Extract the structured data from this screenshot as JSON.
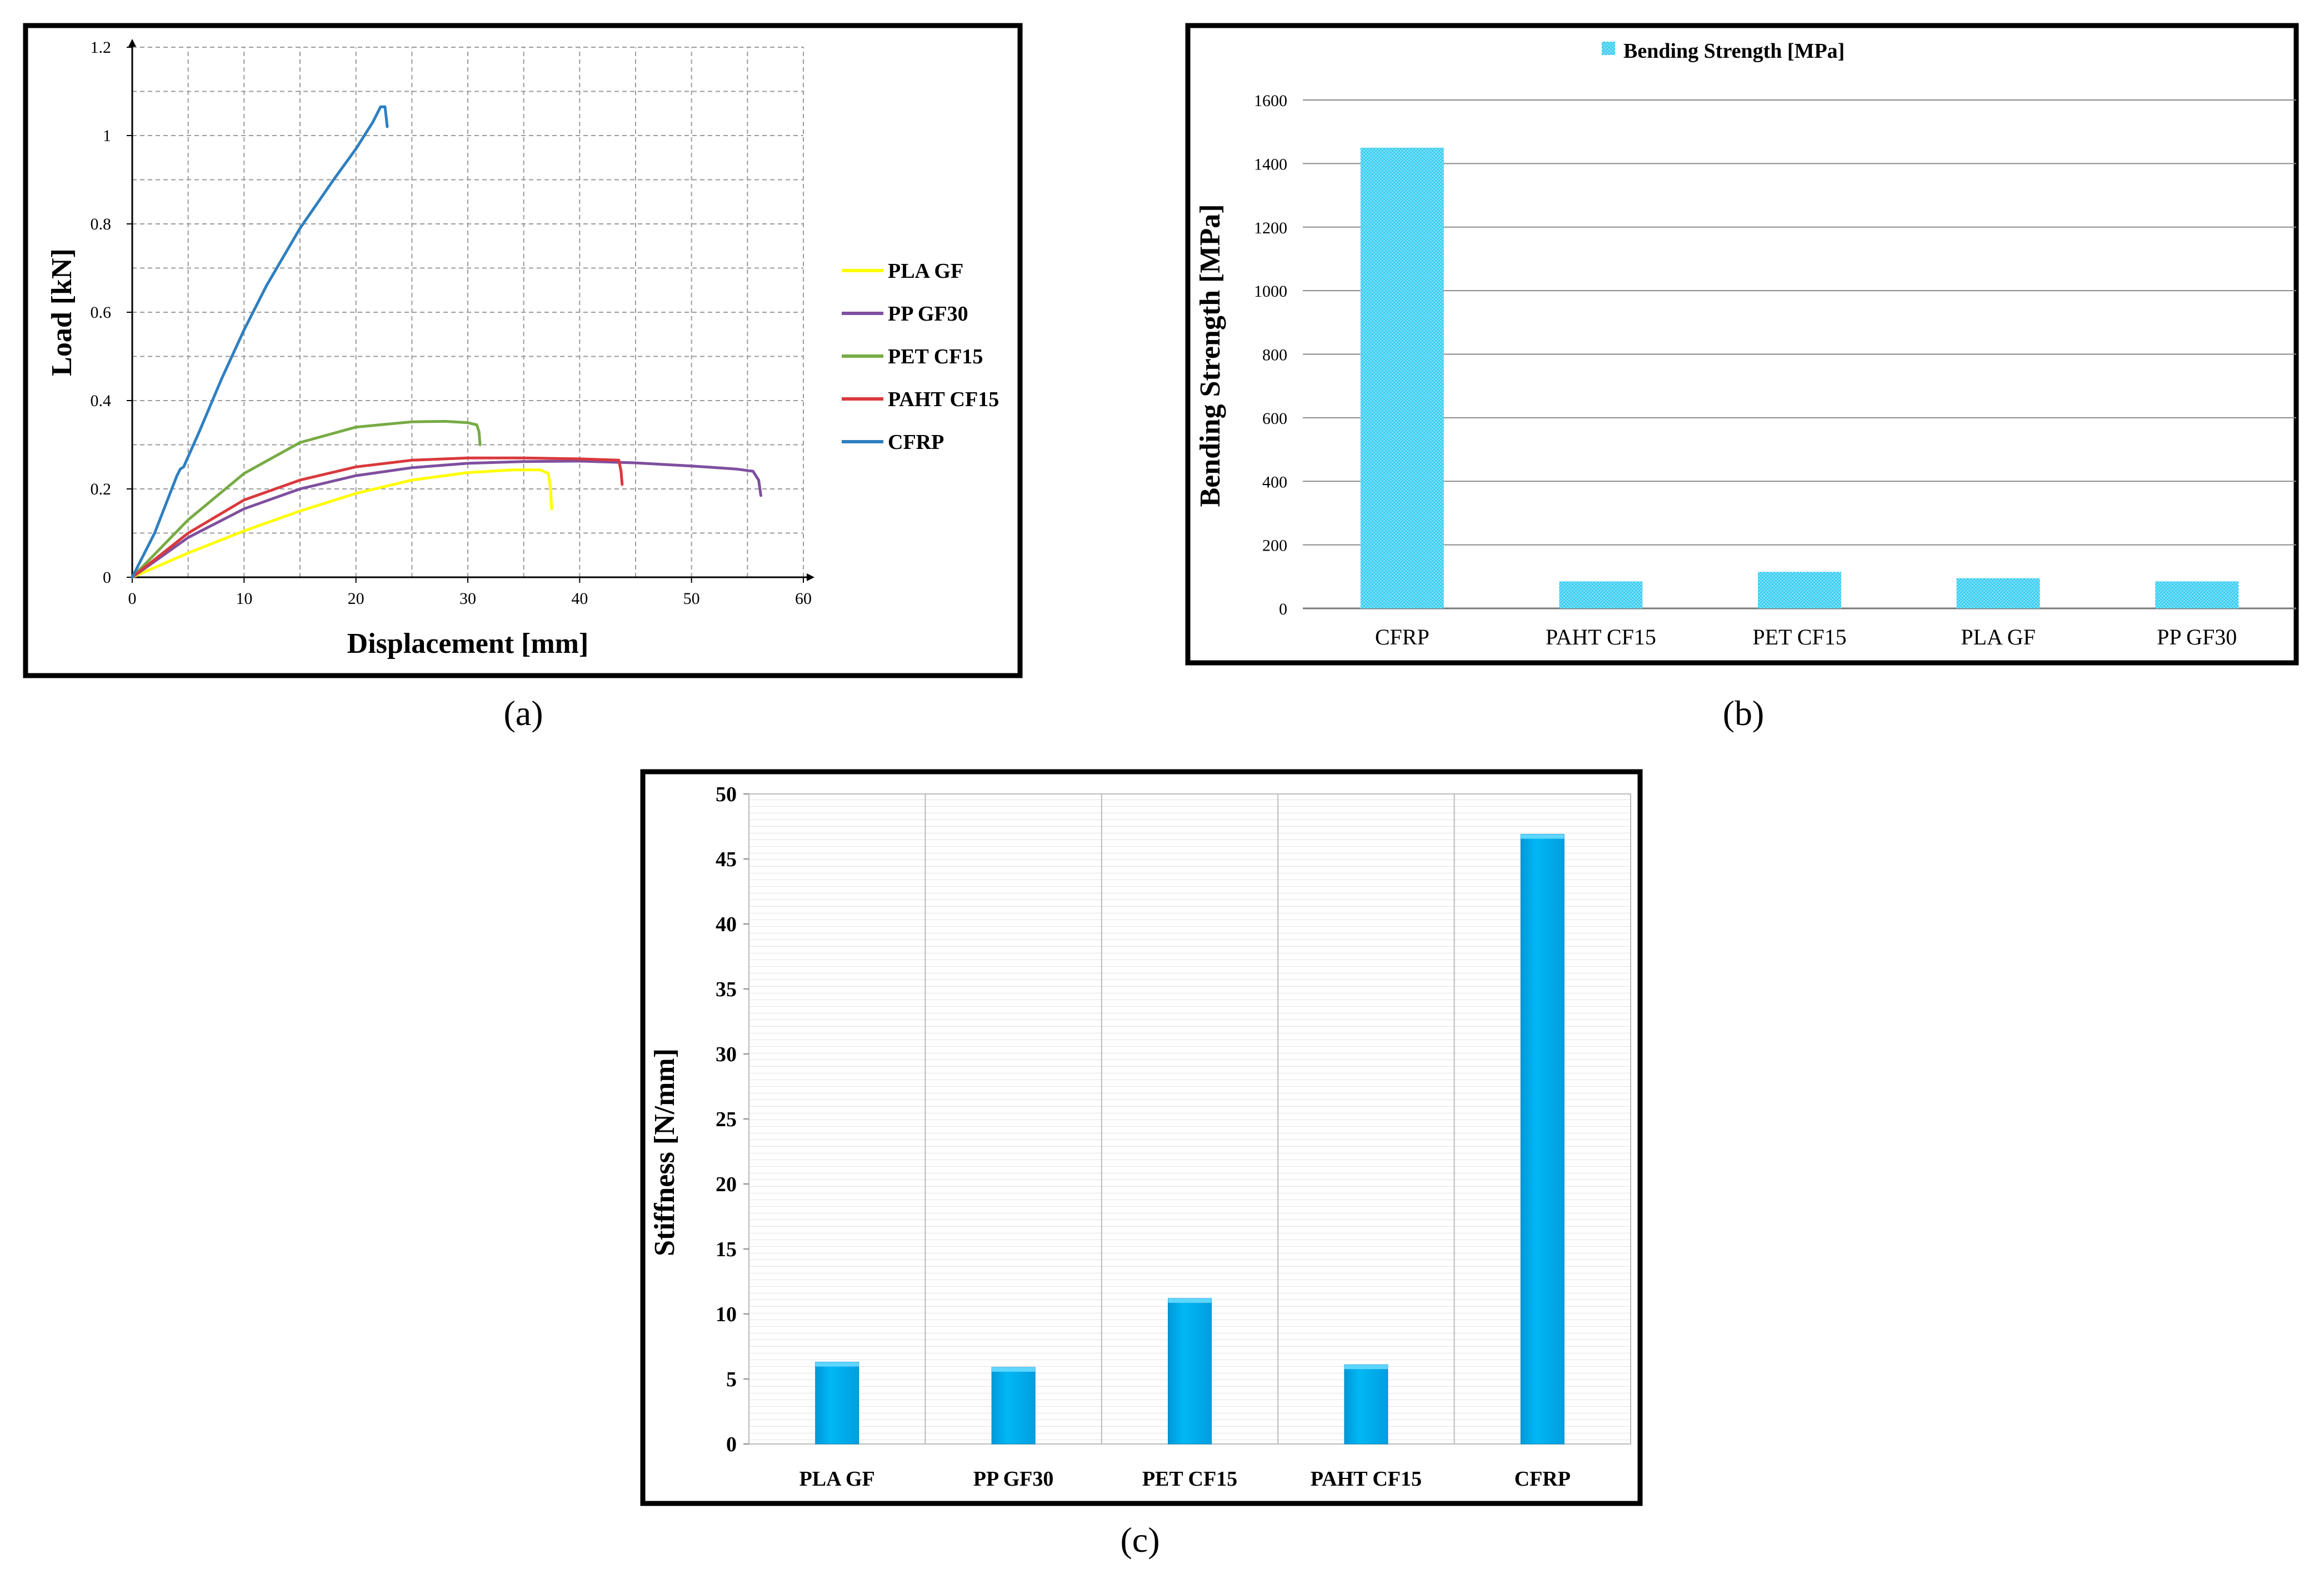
{
  "panel_labels": {
    "a": "(a)",
    "b": "(b)",
    "c": "(c)"
  },
  "chart_data": [
    {
      "type": "line",
      "panel": "a",
      "title": "",
      "xlabel": "Displacement [mm]",
      "ylabel": "Load [kN]",
      "xlim": [
        0,
        60
      ],
      "ylim": [
        0,
        1.2
      ],
      "xticks": [
        0,
        10,
        20,
        30,
        40,
        50,
        60
      ],
      "yticks": [
        0,
        0.2,
        0.4,
        0.6,
        0.8,
        1,
        1.2
      ],
      "xtick_labels": [
        "0",
        "10",
        "20",
        "30",
        "40",
        "50",
        "60"
      ],
      "ytick_labels": [
        "0",
        "0.2",
        "0.4",
        "0.6",
        "0.8",
        "1",
        "1.2"
      ],
      "grid": true,
      "legend_position": "right",
      "series": [
        {
          "name": "PLA GF",
          "color": "#ffff00",
          "x": [
            0,
            5,
            10,
            15,
            20,
            25,
            30,
            34,
            36.5,
            37.2,
            37.4,
            37.5
          ],
          "y": [
            0,
            0.055,
            0.105,
            0.15,
            0.19,
            0.22,
            0.237,
            0.243,
            0.243,
            0.235,
            0.2,
            0.155
          ]
        },
        {
          "name": "PP GF30",
          "color": "#7f4f9f",
          "x": [
            0,
            5,
            10,
            15,
            20,
            25,
            30,
            35,
            40,
            45,
            50,
            54,
            55.5,
            56,
            56.2
          ],
          "y": [
            0,
            0.09,
            0.155,
            0.2,
            0.23,
            0.248,
            0.258,
            0.262,
            0.263,
            0.259,
            0.252,
            0.245,
            0.24,
            0.22,
            0.185
          ]
        },
        {
          "name": "PET CF15",
          "color": "#77ab45",
          "x": [
            0,
            5,
            10,
            15,
            20,
            25,
            28,
            30,
            30.8,
            31,
            31.1
          ],
          "y": [
            0,
            0.13,
            0.235,
            0.305,
            0.34,
            0.352,
            0.353,
            0.35,
            0.345,
            0.33,
            0.3
          ]
        },
        {
          "name": "PAHT CF15",
          "color": "#d9393d",
          "x": [
            0,
            5,
            10,
            15,
            20,
            25,
            30,
            35,
            40,
            43.5,
            43.7,
            43.8
          ],
          "y": [
            0,
            0.1,
            0.175,
            0.22,
            0.25,
            0.265,
            0.27,
            0.27,
            0.268,
            0.265,
            0.24,
            0.21
          ]
        },
        {
          "name": "CFRP",
          "color": "#2e7fc0",
          "x": [
            0,
            2,
            4,
            4.3,
            4.6,
            6,
            8,
            10,
            12,
            15,
            18,
            20,
            21.5,
            22.2,
            22.6,
            22.8
          ],
          "y": [
            0,
            0.1,
            0.23,
            0.245,
            0.25,
            0.33,
            0.45,
            0.56,
            0.66,
            0.79,
            0.9,
            0.97,
            1.03,
            1.065,
            1.065,
            1.02
          ]
        }
      ]
    },
    {
      "type": "bar",
      "panel": "b",
      "title": "Bending Strength [MPa]",
      "xlabel": "",
      "ylabel": "Bending Strength [MPa]",
      "ylim": [
        0,
        1600
      ],
      "yticks": [
        0,
        200,
        400,
        600,
        800,
        1000,
        1200,
        1400,
        1600
      ],
      "ytick_labels": [
        "0",
        "200",
        "400",
        "600",
        "800",
        "1000",
        "1200",
        "1400",
        "1600"
      ],
      "grid": true,
      "legend_position": "top",
      "legend": [
        "Bending Strength [MPa]"
      ],
      "color": "#33ccf0",
      "categories": [
        "CFRP",
        "PAHT CF15",
        "PET CF15",
        "PLA GF",
        "PP GF30"
      ],
      "values": [
        1450,
        85,
        115,
        95,
        85
      ]
    },
    {
      "type": "bar",
      "panel": "c",
      "title": "",
      "xlabel": "",
      "ylabel": "Stiffness [N/mm]",
      "ylim": [
        0,
        50
      ],
      "yticks": [
        0,
        5,
        10,
        15,
        20,
        25,
        30,
        35,
        40,
        45,
        50
      ],
      "ytick_labels": [
        "0",
        "5",
        "10",
        "15",
        "20",
        "25",
        "30",
        "35",
        "40",
        "45",
        "50"
      ],
      "grid": true,
      "color": "#00b0f0",
      "categories": [
        "PLA GF",
        "PP GF30",
        "PET CF15",
        "PAHT CF15",
        "CFRP"
      ],
      "values": [
        6.3,
        5.9,
        11.2,
        6.1,
        46.9
      ]
    }
  ]
}
